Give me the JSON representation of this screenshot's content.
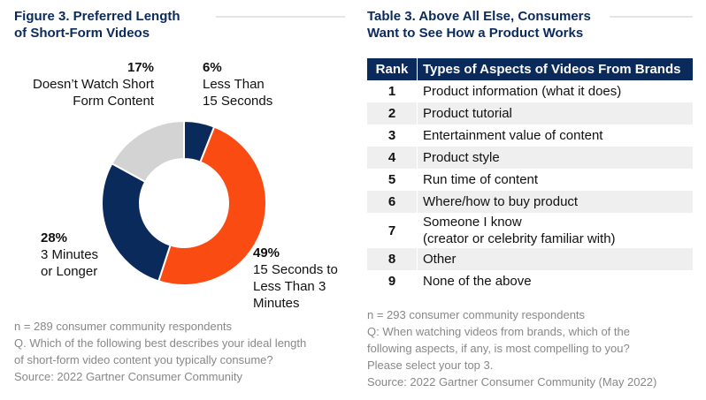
{
  "left": {
    "title_line1": "Figure 3. Preferred Length",
    "title_line2": "of Short-Form Videos",
    "notes": [
      "n = 289 consumer community respondents",
      "Q. Which of the following best describes your ideal length",
      "of short-form video content you typically consume?",
      "Source: 2022 Gartner Consumer Community"
    ]
  },
  "chart_data": {
    "type": "pie",
    "donut": true,
    "title": "Preferred Length of Short-Form Videos",
    "slices": [
      {
        "pct_label": "6%",
        "label_lines": [
          "Less Than",
          "15 Seconds"
        ],
        "value": 6,
        "color": "#0b2a5c"
      },
      {
        "pct_label": "49%",
        "label_lines": [
          "15 Seconds to",
          "Less Than 3",
          "Minutes"
        ],
        "value": 49,
        "color": "#fa4b13"
      },
      {
        "pct_label": "28%",
        "label_lines": [
          "3 Minutes",
          "or Longer"
        ],
        "value": 28,
        "color": "#0b2a5c"
      },
      {
        "pct_label": "17%",
        "label_lines": [
          "Doesn’t Watch Short",
          "Form Content"
        ],
        "value": 17,
        "color": "#d3d3d3"
      }
    ]
  },
  "right": {
    "title_line1": "Table 3. Above All Else, Consumers",
    "title_line2": "Want to See How a Product Works",
    "table": {
      "headers": [
        "Rank",
        "Types of Aspects of Videos From Brands"
      ],
      "rows": [
        {
          "rank": "1",
          "text": "Product information (what it does)"
        },
        {
          "rank": "2",
          "text": "Product tutorial"
        },
        {
          "rank": "3",
          "text": "Entertainment value of content"
        },
        {
          "rank": "4",
          "text": "Product style"
        },
        {
          "rank": "5",
          "text": "Run time of content"
        },
        {
          "rank": "6",
          "text": "Where/how to buy product"
        },
        {
          "rank": "7",
          "text": "Someone I know",
          "text2": "(creator or celebrity familiar with)"
        },
        {
          "rank": "8",
          "text": "Other"
        },
        {
          "rank": "9",
          "text": "None of the above"
        }
      ]
    },
    "notes": [
      "n = 293 consumer community respondents",
      "Q: When watching videos from brands, which of the",
      "following aspects, if any, is most compelling to you?",
      "Please select your top 3.",
      "Source: 2022 Gartner Consumer Community (May 2022)"
    ]
  }
}
